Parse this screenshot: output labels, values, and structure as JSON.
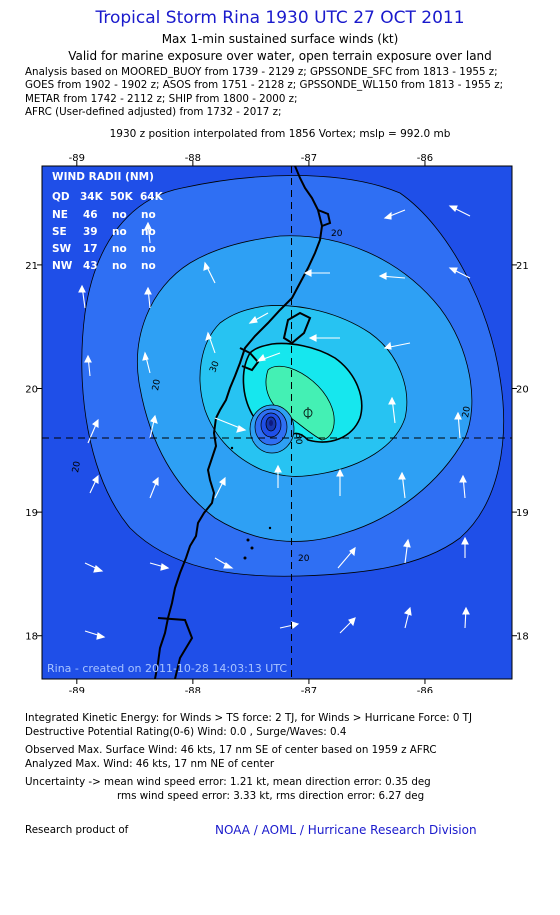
{
  "header": {
    "title": "Tropical Storm Rina 1930 UTC 27 OCT 2011",
    "subtitle": "Max 1-min sustained surface winds (kt)",
    "valid": "Valid for marine exposure over water, open terrain exposure over land"
  },
  "analysis_lines": [
    "Analysis based on MOORED_BUOY from 1739 - 2129 z; GPSSONDE_SFC from 1813 - 1955 z;",
    "GOES from 1902 - 1902 z; ASOS from 1751 - 2128 z; GPSSONDE_WL150 from 1813 - 1955 z;",
    "METAR from 1742 - 2112 z; SHIP from 1800 - 2000 z;",
    "AFRC (User-defined adjusted) from 1732 - 2017 z;"
  ],
  "position_note": "1930 z position interpolated from 1856 Vortex; mslp = 992.0 mb",
  "map": {
    "lon_range": [
      -89.3,
      -85.25
    ],
    "lat_range": [
      17.65,
      21.8
    ],
    "lon_ticks": [
      "-89",
      "-88",
      "-87",
      "-86"
    ],
    "lat_ticks": [
      "18",
      "19",
      "20",
      "21"
    ],
    "center": {
      "lon": -87.15,
      "lat": 19.6
    },
    "contour_labels": [
      "20",
      "20",
      "20",
      "20",
      "20",
      "30",
      "30"
    ],
    "colors": {
      "background": "#1f4fe8",
      "level10": "#2f6ff3",
      "level20": "#2ea0f4",
      "level25": "#27c3f2",
      "level30": "#16e7ee",
      "level40": "#44f0b4",
      "coast": "#000000"
    },
    "wind_radii": {
      "title": "WIND RADII (NM)",
      "columns": [
        "QD",
        "34K",
        "50K",
        "64K"
      ],
      "rows": [
        [
          "NE",
          "46",
          "no",
          "no"
        ],
        [
          "SE",
          "39",
          "no",
          "no"
        ],
        [
          "SW",
          "17",
          "no",
          "no"
        ],
        [
          "NW",
          "43",
          "no",
          "no"
        ]
      ]
    },
    "watermark": "Rina - created on 2011-10-28 14:03:13 UTC"
  },
  "footer": {
    "ike": "Integrated Kinetic Energy:  for Winds > TS force: 2 TJ,  for Winds > Hurricane Force: 0 TJ",
    "dpr": "Destructive Potential Rating(0-6)   Wind: 0.0 , Surge/Waves: 0.4",
    "observed": "Observed Max. Surface Wind: 46 kts, 17 nm SE of center based on 1959 z AFRC",
    "analyzed": "Analyzed Max. Wind: 46 kts, 17 nm NE of center",
    "uncertainty1": "Uncertainty -> mean wind speed error: 1.21 kt,   mean direction error: 0.35 deg",
    "uncertainty2": "rms wind speed error: 3.33 kt,   rms direction error: 6.27 deg",
    "research": "Research product of",
    "org": "NOAA / AOML / Hurricane Research Division"
  }
}
